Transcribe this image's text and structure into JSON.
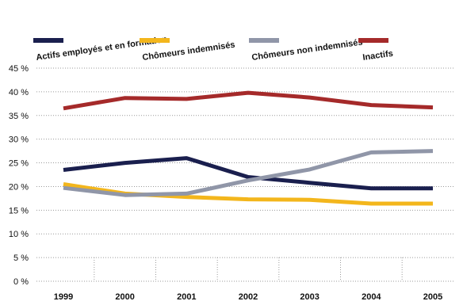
{
  "chart_data": {
    "type": "line",
    "categories": [
      "1999",
      "2000",
      "2001",
      "2002",
      "2003",
      "2004",
      "2005"
    ],
    "series": [
      {
        "name": "Actifs employés et en formation",
        "color": "#1a1f4e",
        "values": [
          23.5,
          25.0,
          26.0,
          22.0,
          20.8,
          19.6,
          19.6
        ]
      },
      {
        "name": "Chômeurs indemnisés",
        "color": "#f3b61c",
        "values": [
          20.5,
          18.5,
          17.8,
          17.3,
          17.2,
          16.4,
          16.4
        ]
      },
      {
        "name": "Chômeurs non indemnisés",
        "color": "#9096a8",
        "values": [
          19.7,
          18.2,
          18.5,
          21.3,
          23.6,
          27.2,
          27.5
        ]
      },
      {
        "name": "Inactifs",
        "color": "#a52a2a",
        "values": [
          36.5,
          38.7,
          38.5,
          39.8,
          38.8,
          37.2,
          36.7
        ]
      }
    ],
    "yticks": [
      "0 %",
      "5 %",
      "10 %",
      "15 %",
      "20 %",
      "25 %",
      "30 %",
      "35 %",
      "40 %",
      "45 %"
    ],
    "ylim": [
      0,
      45
    ],
    "grid": "horizontal-dotted",
    "legend": "top"
  }
}
